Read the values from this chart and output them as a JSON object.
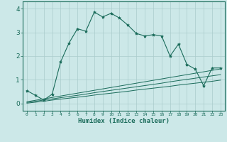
{
  "xlabel": "Humidex (Indice chaleur)",
  "ylabel": "",
  "xlim": [
    -0.5,
    23.5
  ],
  "ylim": [
    -0.3,
    4.3
  ],
  "xticks": [
    0,
    1,
    2,
    3,
    4,
    5,
    6,
    7,
    8,
    9,
    10,
    11,
    12,
    13,
    14,
    15,
    16,
    17,
    18,
    19,
    20,
    21,
    22,
    23
  ],
  "yticks": [
    0,
    1,
    2,
    3,
    4
  ],
  "bg_color": "#cce8e8",
  "line_color": "#1a6b5a",
  "grid_color": "#aacccc",
  "series1_x": [
    0,
    1,
    2,
    3,
    4,
    5,
    6,
    7,
    8,
    9,
    10,
    11,
    12,
    13,
    14,
    15,
    16,
    17,
    18,
    19,
    20,
    21,
    22,
    23
  ],
  "series1_y": [
    0.55,
    0.35,
    0.15,
    0.4,
    1.75,
    2.55,
    3.15,
    3.05,
    3.85,
    3.65,
    3.8,
    3.6,
    3.3,
    2.95,
    2.85,
    2.9,
    2.85,
    2.0,
    2.5,
    1.65,
    1.45,
    0.75,
    1.5,
    1.5
  ],
  "series2_x": [
    0,
    1,
    2,
    3,
    4,
    5,
    6,
    7,
    8,
    9,
    10,
    11,
    12,
    13,
    14,
    15,
    16,
    17,
    18,
    19,
    20,
    21,
    22,
    23
  ],
  "series2_y": [
    0.02,
    0.06,
    0.1,
    0.15,
    0.19,
    0.23,
    0.27,
    0.31,
    0.36,
    0.4,
    0.44,
    0.48,
    0.52,
    0.57,
    0.61,
    0.65,
    0.69,
    0.73,
    0.78,
    0.82,
    0.86,
    0.9,
    0.94,
    0.99
  ],
  "series3_x": [
    0,
    1,
    2,
    3,
    4,
    5,
    6,
    7,
    8,
    9,
    10,
    11,
    12,
    13,
    14,
    15,
    16,
    17,
    18,
    19,
    20,
    21,
    22,
    23
  ],
  "series3_y": [
    0.05,
    0.1,
    0.15,
    0.2,
    0.25,
    0.3,
    0.35,
    0.4,
    0.46,
    0.51,
    0.56,
    0.61,
    0.66,
    0.71,
    0.76,
    0.81,
    0.86,
    0.92,
    0.97,
    1.02,
    1.07,
    1.12,
    1.17,
    1.22
  ],
  "series4_x": [
    0,
    1,
    2,
    3,
    4,
    5,
    6,
    7,
    8,
    9,
    10,
    11,
    12,
    13,
    14,
    15,
    16,
    17,
    18,
    19,
    20,
    21,
    22,
    23
  ],
  "series4_y": [
    0.08,
    0.14,
    0.2,
    0.26,
    0.32,
    0.38,
    0.44,
    0.5,
    0.56,
    0.62,
    0.68,
    0.74,
    0.8,
    0.86,
    0.92,
    0.98,
    1.04,
    1.1,
    1.16,
    1.22,
    1.28,
    1.34,
    1.4,
    1.46
  ]
}
